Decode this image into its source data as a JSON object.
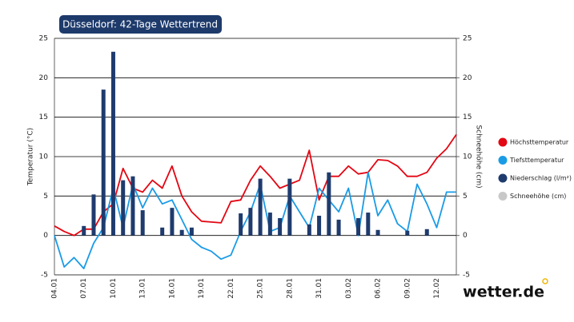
{
  "chart_data": {
    "type": "combo",
    "title": "Düsseldorf: 42-Tage Wettertrend",
    "y_label": "Temperatur (°C)",
    "y2_label": "Schneehöhe (cm)",
    "categories": [
      "04.01",
      null,
      null,
      "07.01",
      null,
      null,
      "10.01",
      null,
      null,
      "13.01",
      null,
      null,
      "16.01",
      null,
      null,
      "19.01",
      null,
      null,
      "22.01",
      null,
      null,
      "25.01",
      null,
      null,
      "28.01",
      null,
      null,
      "31.01",
      null,
      null,
      "03.02",
      null,
      null,
      "06.02",
      null,
      null,
      "09.02",
      null,
      null,
      "12.02",
      null,
      null
    ],
    "ylim": [
      -5,
      25
    ],
    "yticks": [
      -5,
      0,
      5,
      10,
      15,
      20,
      25
    ],
    "y2lim": [
      -5,
      25
    ],
    "y2ticks": [
      -5,
      0,
      5,
      10,
      15,
      20,
      25
    ],
    "grid": true,
    "legend": "right",
    "series": [
      {
        "name": "Höchsttemperatur",
        "type": "line",
        "color": "#e30613",
        "values": [
          1.2,
          0.5,
          0,
          0.8,
          0.8,
          3,
          4,
          8.5,
          6,
          5.5,
          7,
          6,
          8.8,
          5,
          3,
          1.8,
          1.7,
          1.6,
          4.3,
          4.5,
          7,
          8.8,
          7.5,
          6,
          6.5,
          7,
          10.8,
          4.5,
          7.5,
          7.5,
          8.8,
          7.8,
          8,
          9.6,
          9.5,
          8.8,
          7.5,
          7.5,
          8,
          9.8,
          11,
          12.8
        ]
      },
      {
        "name": "Tiefsttemperatur",
        "type": "line",
        "color": "#1a9be6",
        "values": [
          0,
          -4,
          -2.8,
          -4.2,
          -1,
          1,
          6,
          1,
          6.5,
          3.5,
          6,
          4,
          4.5,
          2,
          -0.5,
          -1.5,
          -2,
          -3,
          -2.5,
          0.5,
          3,
          6.5,
          0.5,
          1,
          5,
          3,
          1,
          6,
          4.5,
          3,
          6,
          0,
          8,
          2.5,
          4.5,
          1.5,
          0.5,
          6.5,
          4,
          1,
          5.5,
          5.5
        ]
      },
      {
        "name": "Niederschlag (l/m²)",
        "type": "bar",
        "color": "#1f3b6e",
        "axis": "y2",
        "values": [
          0,
          0,
          0,
          1.2,
          5.2,
          18.5,
          23.3,
          7,
          7.5,
          3.2,
          0,
          1,
          3.5,
          0.7,
          1,
          0,
          0,
          0,
          0,
          2.8,
          3.5,
          7.2,
          2.9,
          2.2,
          7.2,
          0,
          1.4,
          2.5,
          8,
          2,
          0,
          2.2,
          2.9,
          0.7,
          0,
          0,
          0.6,
          0,
          0.8,
          0,
          0,
          0
        ]
      },
      {
        "name": "Schneehöhe (cm)",
        "type": "bar",
        "color": "#c8c8c8",
        "axis": "y2",
        "values": [
          0,
          0,
          0,
          0,
          0,
          0,
          0,
          0,
          0,
          0,
          0,
          0,
          0,
          0,
          0,
          0,
          0,
          0,
          0,
          0,
          0,
          0,
          0,
          0,
          0,
          0,
          0,
          0,
          0,
          0,
          0,
          0,
          0,
          0,
          0,
          0,
          0,
          0,
          0,
          0,
          0,
          0
        ]
      }
    ]
  },
  "brand": "wetter.de"
}
